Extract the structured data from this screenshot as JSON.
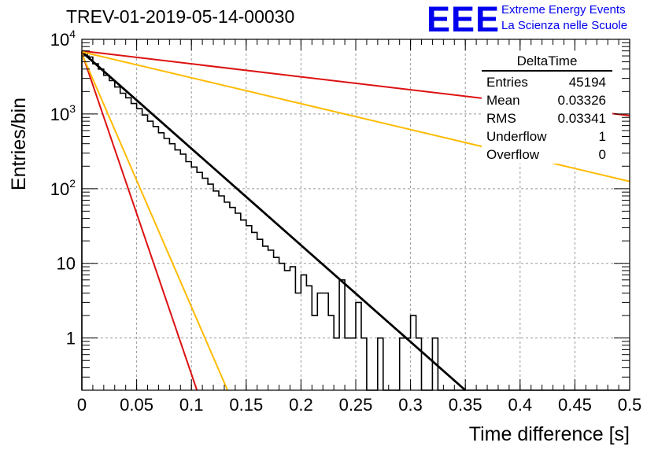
{
  "header": {
    "title": "TREV-01-2019-05-14-00030",
    "logo_text": "EEE",
    "logo_line1": "Extreme Energy Events",
    "logo_line2": "La Scienza nelle Scuole"
  },
  "stats_box": {
    "title": "DeltaTime",
    "rows": [
      {
        "label": "Entries",
        "value": "45194"
      },
      {
        "label": "Mean",
        "value": "0.03326"
      },
      {
        "label": "RMS",
        "value": "0.03341"
      },
      {
        "label": "Underflow",
        "value": "1"
      },
      {
        "label": "Overflow",
        "value": "0"
      }
    ]
  },
  "chart_data": {
    "type": "histogram",
    "xlabel": "Time difference [s]",
    "ylabel": "Entries/bin",
    "xlim": [
      0,
      0.5
    ],
    "ylim": [
      0.2,
      10000
    ],
    "yscale": "log",
    "grid": true,
    "x_ticks": [
      "0",
      "0.05",
      "0.1",
      "0.15",
      "0.2",
      "0.25",
      "0.3",
      "0.35",
      "0.4",
      "0.45",
      "0.5"
    ],
    "y_ticks": [
      {
        "value": 1,
        "label": "1"
      },
      {
        "value": 10,
        "label": "10"
      },
      {
        "value": 100,
        "label": "10^2"
      },
      {
        "value": 1000,
        "label": "10^3"
      },
      {
        "value": 10000,
        "label": "10^4"
      }
    ],
    "bin_width": 0.005,
    "bin_contents": [
      6800,
      5800,
      4700,
      4000,
      3300,
      2800,
      2300,
      1900,
      1650,
      1380,
      1180,
      970,
      800,
      680,
      560,
      470,
      400,
      330,
      290,
      230,
      195,
      165,
      138,
      115,
      93,
      80,
      66,
      56,
      47,
      38,
      32,
      26,
      21,
      17,
      15,
      12,
      10,
      8,
      9,
      4,
      7,
      5,
      2,
      4,
      4,
      2,
      1,
      6,
      1,
      1,
      3,
      1,
      0,
      0,
      1,
      0,
      0,
      0,
      1,
      1,
      2,
      1,
      0,
      0,
      1,
      0,
      0,
      0,
      0,
      0,
      0,
      0,
      0,
      0,
      0,
      0,
      0,
      0,
      0,
      0,
      0,
      0,
      0,
      0,
      0,
      0,
      0,
      0,
      0,
      0,
      0,
      0,
      0,
      0,
      0,
      0,
      0,
      0,
      0,
      0
    ],
    "curves": [
      {
        "color": "#000000",
        "points": [
          [
            0,
            6800
          ],
          [
            0.35,
            0.2
          ]
        ]
      },
      {
        "color": "#dd1111",
        "points": [
          [
            0,
            6600
          ],
          [
            0.105,
            0.2
          ]
        ]
      },
      {
        "color": "#ffbb00",
        "points": [
          [
            0,
            6400
          ],
          [
            0.133,
            0.2
          ]
        ]
      },
      {
        "color": "#dd1111",
        "points": [
          [
            0,
            7000
          ],
          [
            0.5,
            950
          ]
        ]
      },
      {
        "color": "#ffbb00",
        "points": [
          [
            0,
            6800
          ],
          [
            0.5,
            125
          ]
        ]
      }
    ]
  }
}
